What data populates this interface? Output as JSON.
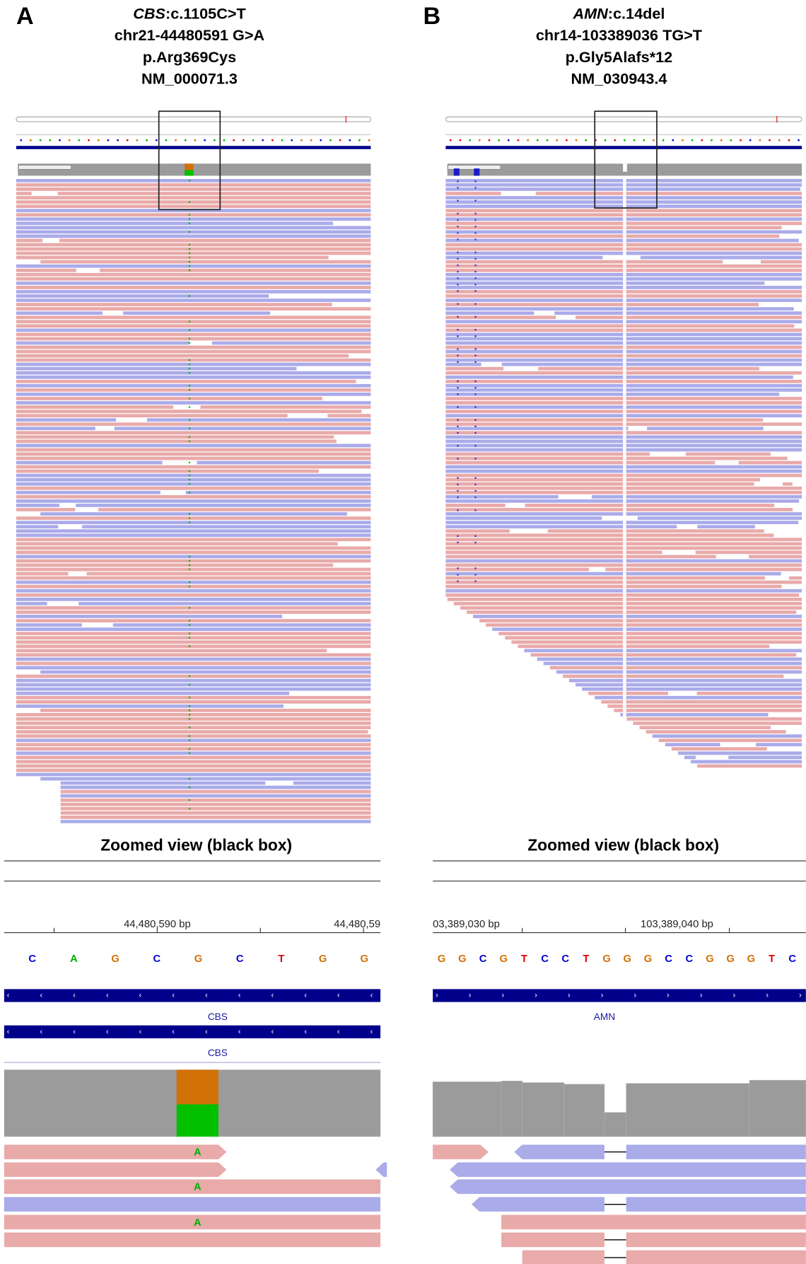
{
  "base_colors": {
    "A": "#00b000",
    "C": "#0000d0",
    "G": "#d17105",
    "T": "#e00000"
  },
  "panels": [
    {
      "label": "A",
      "gene": "CBS",
      "title_rest": ":c.1105C>T",
      "lines": [
        "chr21-44480591 G>A",
        "p.Arg369Cys",
        "NM_000071.3"
      ],
      "zoom": {
        "title": "Zoomed view (black box)",
        "ticks": [
          "44,480,590 bp",
          "44,480,59"
        ],
        "bases": [
          "C",
          "A",
          "G",
          "C",
          "G",
          "C",
          "T",
          "G",
          "G"
        ],
        "genes": [
          "CBS",
          "CBS"
        ],
        "read_bases": [
          "A",
          "A",
          "A"
        ]
      }
    },
    {
      "label": "B",
      "gene": "AMN",
      "title_rest": ":c.14del",
      "lines": [
        "chr14-103389036 TG>T",
        "p.Gly5Alafs*12",
        "NM_030943.4"
      ],
      "zoom": {
        "title": "Zoomed view (black box)",
        "ticks": [
          "03,389,030 bp",
          "103,389,040 bp"
        ],
        "bases": [
          "G",
          "G",
          "C",
          "G",
          "T",
          "C",
          "C",
          "T",
          "G",
          "G",
          "G",
          "C",
          "C",
          "G",
          "G",
          "G",
          "T",
          "C"
        ],
        "genes": [
          "AMN"
        ]
      }
    }
  ]
}
